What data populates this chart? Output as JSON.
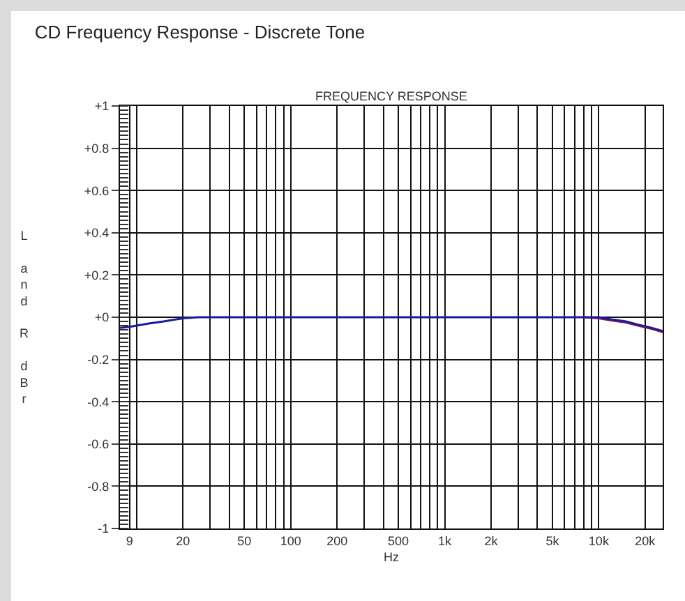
{
  "chart_data": {
    "type": "line",
    "title": "CD Frequency Response - Discrete Tone",
    "subtitle": "FREQUENCY RESPONSE",
    "xlabel": "Hz",
    "ylabel": "L and R dBr",
    "log": "x",
    "grid": true,
    "marker": "none",
    "line_style": "solid",
    "xlim": [
      7.8,
      26000
    ],
    "ylim": [
      -1,
      1
    ],
    "xticks": [
      9,
      {
        "value": 10,
        "label": null
      },
      20,
      {
        "value": 30,
        "label": null
      },
      {
        "value": 40,
        "label": null
      },
      50,
      {
        "value": 60,
        "label": null
      },
      {
        "value": 70,
        "label": null
      },
      {
        "value": 80,
        "label": null
      },
      {
        "value": 90,
        "label": null
      },
      100,
      200,
      {
        "value": 300,
        "label": null
      },
      {
        "value": 400,
        "label": null
      },
      500,
      {
        "value": 600,
        "label": null
      },
      {
        "value": 700,
        "label": null
      },
      {
        "value": 800,
        "label": null
      },
      {
        "value": 900,
        "label": null
      },
      {
        "value": 1000,
        "label": "1k"
      },
      {
        "value": 2000,
        "label": "2k"
      },
      {
        "value": 3000,
        "label": null
      },
      {
        "value": 4000,
        "label": null
      },
      {
        "value": 5000,
        "label": "5k"
      },
      {
        "value": 6000,
        "label": null
      },
      {
        "value": 7000,
        "label": null
      },
      {
        "value": 8000,
        "label": null
      },
      {
        "value": 9000,
        "label": null
      },
      {
        "value": 10000,
        "label": "10k"
      },
      {
        "value": 20000,
        "label": "20k"
      }
    ],
    "yticks": [
      {
        "value": 1,
        "label": "+1"
      },
      {
        "value": 0.8,
        "label": "+0.8"
      },
      {
        "value": 0.6,
        "label": "+0.6"
      },
      {
        "value": 0.4,
        "label": "+0.4"
      },
      {
        "value": 0.2,
        "label": "+0.2"
      },
      {
        "value": 0,
        "label": "+0"
      },
      -0.2,
      -0.4,
      -0.6,
      -0.8,
      -1
    ],
    "series": [
      {
        "color": "#8b1a4a",
        "x": [
          8000,
          10000,
          12000,
          15000,
          18000,
          22000,
          26000
        ],
        "values": [
          0,
          -0.005,
          -0.015,
          -0.025,
          -0.04,
          -0.055,
          -0.07
        ]
      },
      {
        "color": "#1a1aa0",
        "x": [
          7.8,
          9,
          12,
          15,
          20,
          25,
          30,
          100,
          1000,
          5000,
          10000,
          12000,
          15000,
          18000,
          22000,
          26000
        ],
        "values": [
          -0.05,
          -0.045,
          -0.03,
          -0.02,
          -0.005,
          0,
          0,
          0,
          0,
          0,
          0,
          -0.01,
          -0.02,
          -0.035,
          -0.05,
          -0.065
        ]
      }
    ]
  }
}
